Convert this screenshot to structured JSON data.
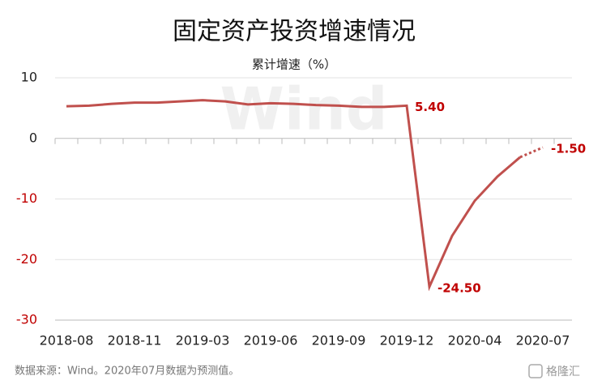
{
  "chart_data": {
    "type": "line",
    "title": "固定资产投资增速情况",
    "subtitle": "累计增速（%）",
    "source": "数据来源：Wind。2020年07月数据为预测值。",
    "watermark": "Wind",
    "logo": "格隆汇",
    "categories": [
      "2018-08",
      null,
      null,
      "2018-11",
      null,
      null,
      "2019-03",
      null,
      null,
      "2019-06",
      null,
      null,
      "2019-09",
      null,
      null,
      "2019-12",
      null,
      null,
      "2020-04",
      null,
      null,
      "2020-07"
    ],
    "series": [
      {
        "name": "累计增速",
        "color": "#c0504d",
        "values": [
          5.3,
          5.4,
          5.7,
          5.9,
          5.9,
          6.1,
          6.3,
          6.1,
          5.6,
          5.8,
          5.7,
          5.5,
          5.4,
          5.2,
          5.2,
          5.4,
          -24.5,
          -16.1,
          -10.3,
          -6.3,
          -3.1,
          -1.5
        ],
        "value_labels": [
          null,
          null,
          null,
          null,
          null,
          null,
          null,
          null,
          null,
          null,
          null,
          null,
          null,
          null,
          null,
          "5.40",
          "-24.50",
          null,
          null,
          null,
          null,
          "-1.50"
        ],
        "dash_last_segment": true
      }
    ],
    "ylim": [
      -30,
      10
    ],
    "yticks": [
      -30,
      -20,
      -10,
      0,
      10
    ],
    "negative_color": "#c00000",
    "label_color": "#c00000",
    "grid": true
  }
}
